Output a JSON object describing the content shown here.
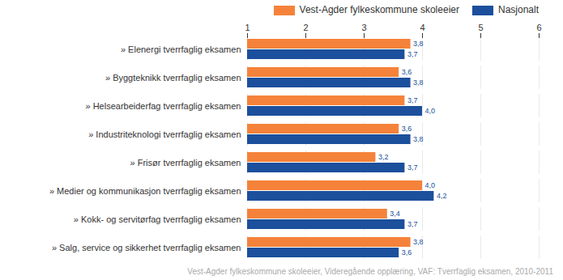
{
  "chart_data": {
    "type": "bar",
    "orientation": "horizontal",
    "caption": "Vest-Agder fylkeskommune skoleeier, Videregående opplæring, VAF: Tverrfaglig eksamen, 2010-2011",
    "categories": [
      "» Elenergi tverrfaglig eksamen",
      "» Byggteknikk tverrfaglig eksamen",
      "» Helsearbeiderfag tverrfaglig eksamen",
      "» Industriteknologi tverrfaglig eksamen",
      "» Frisør tverrfaglig eksamen",
      "» Medier og kommunikasjon tverrfaglig eksamen",
      "» Kokk- og servitørfag tverrfaglig eksamen",
      "» Salg, service og sikkerhet tverrfaglig eksamen"
    ],
    "series": [
      {
        "name": "Vest-Agder fylkeskommune skoleeier",
        "color": "#f5823a",
        "values": [
          3.8,
          3.6,
          3.7,
          3.6,
          3.2,
          4.0,
          3.4,
          3.8
        ],
        "value_labels": [
          "3,8",
          "3,6",
          "3,7",
          "3,6",
          "3,2",
          "4,0",
          "3,4",
          "3,8"
        ]
      },
      {
        "name": "Nasjonalt",
        "color": "#1c4f9c",
        "values": [
          3.7,
          3.8,
          4.0,
          3.8,
          3.7,
          4.2,
          3.7,
          3.6
        ],
        "value_labels": [
          "3,7",
          "3,8",
          "4,0",
          "3,8",
          "3,7",
          "4,2",
          "3,7",
          "3,6"
        ]
      }
    ],
    "xlim": [
      1,
      6
    ],
    "xticks": [
      1,
      2,
      3,
      4,
      5,
      6
    ],
    "grid": true,
    "data_labels": true,
    "legend": "top-right"
  }
}
